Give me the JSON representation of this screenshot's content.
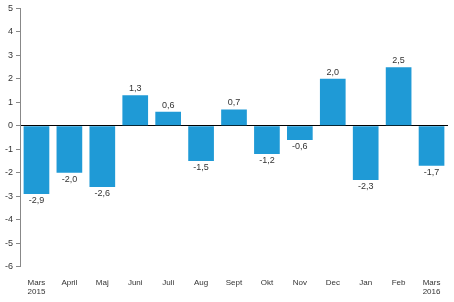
{
  "chart_data": {
    "type": "bar",
    "categories": [
      [
        "Mars",
        "2015"
      ],
      "April",
      "Maj",
      "Juni",
      "Juli",
      "Aug",
      "Sept",
      "Okt",
      "Nov",
      "Dec",
      "Jan",
      "Feb",
      [
        "Mars",
        "2016"
      ]
    ],
    "values": [
      -2.9,
      -2.0,
      -2.6,
      1.3,
      0.6,
      -1.5,
      0.7,
      -1.2,
      -0.6,
      2.0,
      -2.3,
      2.5,
      -1.7
    ],
    "value_labels": [
      "-2,9",
      "-2,0",
      "-2,6",
      "1,3",
      "0,6",
      "-1,5",
      "0,7",
      "-1,2",
      "-0,6",
      "2,0",
      "-2,3",
      "2,5",
      "-1,7"
    ],
    "color": "#1f9ad6",
    "ylim": [
      -6,
      5
    ],
    "yticks": [
      -6,
      -5,
      -4,
      -3,
      -2,
      -1,
      0,
      1,
      2,
      3,
      4,
      5
    ],
    "grid": false,
    "data_labels": true
  }
}
